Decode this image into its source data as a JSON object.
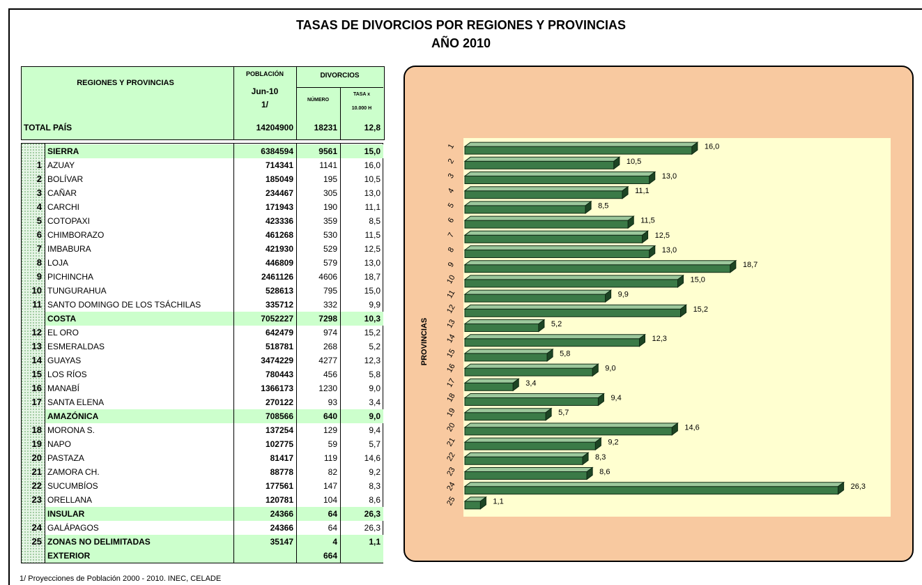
{
  "title": "TASAS DE DIVORCIOS POR REGIONES Y PROVINCIAS",
  "subtitle": "AÑO 2010",
  "table": {
    "header": {
      "regions": "REGIONES Y PROVINCIAS",
      "population": "POBLACIÓN",
      "date": "Jun-10",
      "note": "1/",
      "divorces": "DIVORCIOS",
      "number": "NÚMERO",
      "rate_line1": "TASA x",
      "rate_line2": "10.000 H"
    },
    "total": {
      "name": "TOTAL PAÍS",
      "population": "14204900",
      "divorces": "18231",
      "rate": "12,8"
    },
    "rows": [
      {
        "name": "SIERRA",
        "population": "6384594",
        "divorces": "9561",
        "rate": "15,0",
        "highlight": true
      },
      {
        "num": "1",
        "name": "AZUAY",
        "population": "714341",
        "divorces": "1141",
        "rate": "16,0"
      },
      {
        "num": "2",
        "name": "BOLÍVAR",
        "population": "185049",
        "divorces": "195",
        "rate": "10,5"
      },
      {
        "num": "3",
        "name": "CAÑAR",
        "population": "234467",
        "divorces": "305",
        "rate": "13,0"
      },
      {
        "num": "4",
        "name": "CARCHI",
        "population": "171943",
        "divorces": "190",
        "rate": "11,1"
      },
      {
        "num": "5",
        "name": "COTOPAXI",
        "population": "423336",
        "divorces": "359",
        "rate": "8,5"
      },
      {
        "num": "6",
        "name": "CHIMBORAZO",
        "population": "461268",
        "divorces": "530",
        "rate": "11,5"
      },
      {
        "num": "7",
        "name": "IMBABURA",
        "population": "421930",
        "divorces": "529",
        "rate": "12,5"
      },
      {
        "num": "8",
        "name": "LOJA",
        "population": "446809",
        "divorces": "579",
        "rate": "13,0"
      },
      {
        "num": "9",
        "name": "PICHINCHA",
        "population": "2461126",
        "divorces": "4606",
        "rate": "18,7"
      },
      {
        "num": "10",
        "name": "TUNGURAHUA",
        "population": "528613",
        "divorces": "795",
        "rate": "15,0"
      },
      {
        "num": "11",
        "name": "SANTO DOMINGO DE LOS TSÁCHILAS",
        "population": "335712",
        "divorces": "332",
        "rate": "9,9"
      },
      {
        "name": "COSTA",
        "population": "7052227",
        "divorces": "7298",
        "rate": "10,3",
        "highlight": true
      },
      {
        "num": "12",
        "name": "EL ORO",
        "population": "642479",
        "divorces": "974",
        "rate": "15,2"
      },
      {
        "num": "13",
        "name": "ESMERALDAS",
        "population": "518781",
        "divorces": "268",
        "rate": "5,2"
      },
      {
        "num": "14",
        "name": "GUAYAS",
        "population": "3474229",
        "divorces": "4277",
        "rate": "12,3"
      },
      {
        "num": "15",
        "name": "LOS RÍOS",
        "population": "780443",
        "divorces": "456",
        "rate": "5,8"
      },
      {
        "num": "16",
        "name": "MANABÍ",
        "population": "1366173",
        "divorces": "1230",
        "rate": "9,0"
      },
      {
        "num": "17",
        "name": "SANTA ELENA",
        "population": "270122",
        "divorces": "93",
        "rate": "3,4"
      },
      {
        "name": "AMAZÓNICA",
        "population": "708566",
        "divorces": "640",
        "rate": "9,0",
        "highlight": true
      },
      {
        "num": "18",
        "name": "MORONA S.",
        "population": "137254",
        "divorces": "129",
        "rate": "9,4"
      },
      {
        "num": "19",
        "name": "NAPO",
        "population": "102775",
        "divorces": "59",
        "rate": "5,7"
      },
      {
        "num": "20",
        "name": "PASTAZA",
        "population": "81417",
        "divorces": "119",
        "rate": "14,6"
      },
      {
        "num": "21",
        "name": "ZAMORA CH.",
        "population": "88778",
        "divorces": "82",
        "rate": "9,2"
      },
      {
        "num": "22",
        "name": "SUCUMBÍOS",
        "population": "177561",
        "divorces": "147",
        "rate": "8,3"
      },
      {
        "num": "23",
        "name": "ORELLANA",
        "population": "120781",
        "divorces": "104",
        "rate": "8,6"
      },
      {
        "name": "INSULAR",
        "population": "24366",
        "divorces": "64",
        "rate": "26,3",
        "highlight": true
      },
      {
        "num": "24",
        "name": "GALÁPAGOS",
        "population": "24366",
        "divorces": "64",
        "rate": "26,3"
      },
      {
        "num": "25",
        "name": "ZONAS NO DELIMITADAS",
        "population": "35147",
        "divorces": "4",
        "rate": "1,1",
        "highlight": true
      },
      {
        "name": "EXTERIOR",
        "divorces": "664",
        "highlight": true
      }
    ]
  },
  "chart_data": {
    "type": "hbar",
    "y_label": "PROVINCIAS",
    "categories": [
      "1",
      "2",
      "3",
      "4",
      "5",
      "6",
      "7",
      "8",
      "9",
      "10",
      "11",
      "12",
      "13",
      "14",
      "15",
      "16",
      "17",
      "18",
      "19",
      "20",
      "21",
      "22",
      "23",
      "24",
      "25"
    ],
    "values": [
      16.0,
      10.5,
      13.0,
      11.1,
      8.5,
      11.5,
      12.5,
      13.0,
      18.7,
      15.0,
      9.9,
      15.2,
      5.2,
      12.3,
      5.8,
      9.0,
      3.4,
      9.4,
      5.7,
      14.6,
      9.2,
      8.3,
      8.6,
      26.3,
      1.1
    ],
    "value_labels": [
      "16,0",
      "10,5",
      "13,0",
      "11,1",
      "8,5",
      "11,5",
      "12,5",
      "13,0",
      "18,7",
      "15,0",
      "9,9",
      "15,2",
      "5,2",
      "12,3",
      "5,8",
      "9,0",
      "3,4",
      "9,4",
      "5,7",
      "14,6",
      "9,2",
      "8,3",
      "8,6",
      "26,3",
      "1,1"
    ],
    "xlim": [
      0,
      30
    ],
    "color": "#3b7a47"
  },
  "footnote": "1/  Proyecciones de Población 2000 - 2010. INEC, CELADE"
}
